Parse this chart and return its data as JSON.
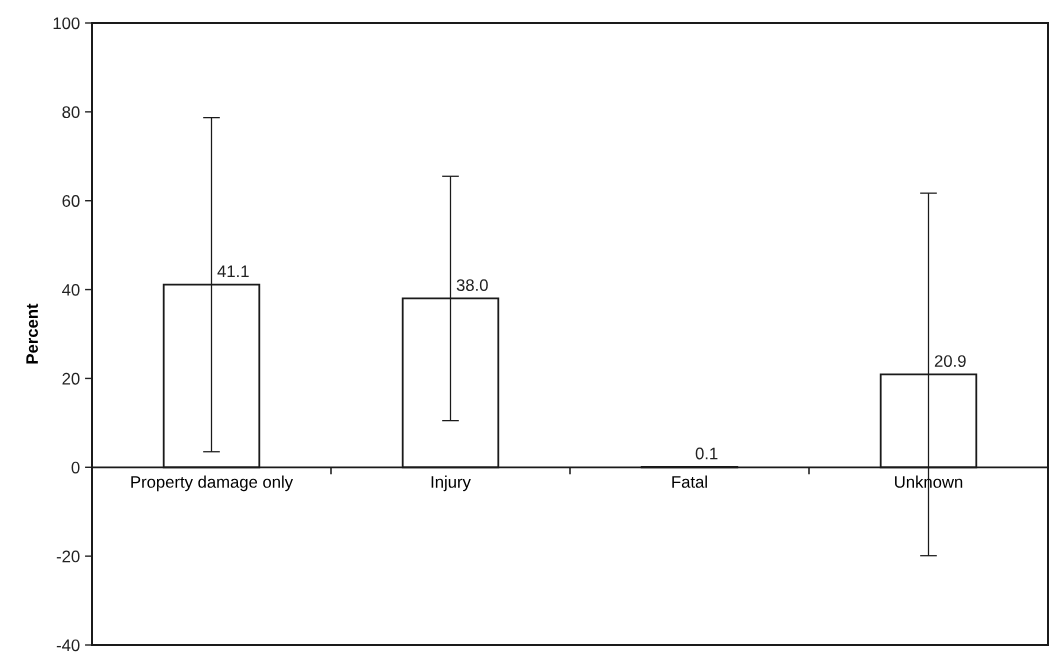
{
  "chart_data": {
    "type": "bar",
    "ylabel": "Percent",
    "categories": [
      "Property damage only",
      "Injury",
      "Fatal",
      "Unknown"
    ],
    "values": [
      41.1,
      38.0,
      0.1,
      20.9
    ],
    "errors": [
      37.6,
      27.5,
      null,
      40.8
    ],
    "color": "#ffffff",
    "value_labels": [
      "41.1",
      "38.0",
      "0.1",
      "20.9"
    ],
    "ylim": [
      -40,
      100
    ],
    "yticks": [
      -40,
      -20,
      0,
      20,
      40,
      60,
      80,
      100
    ],
    "grid": false,
    "legend": false
  }
}
